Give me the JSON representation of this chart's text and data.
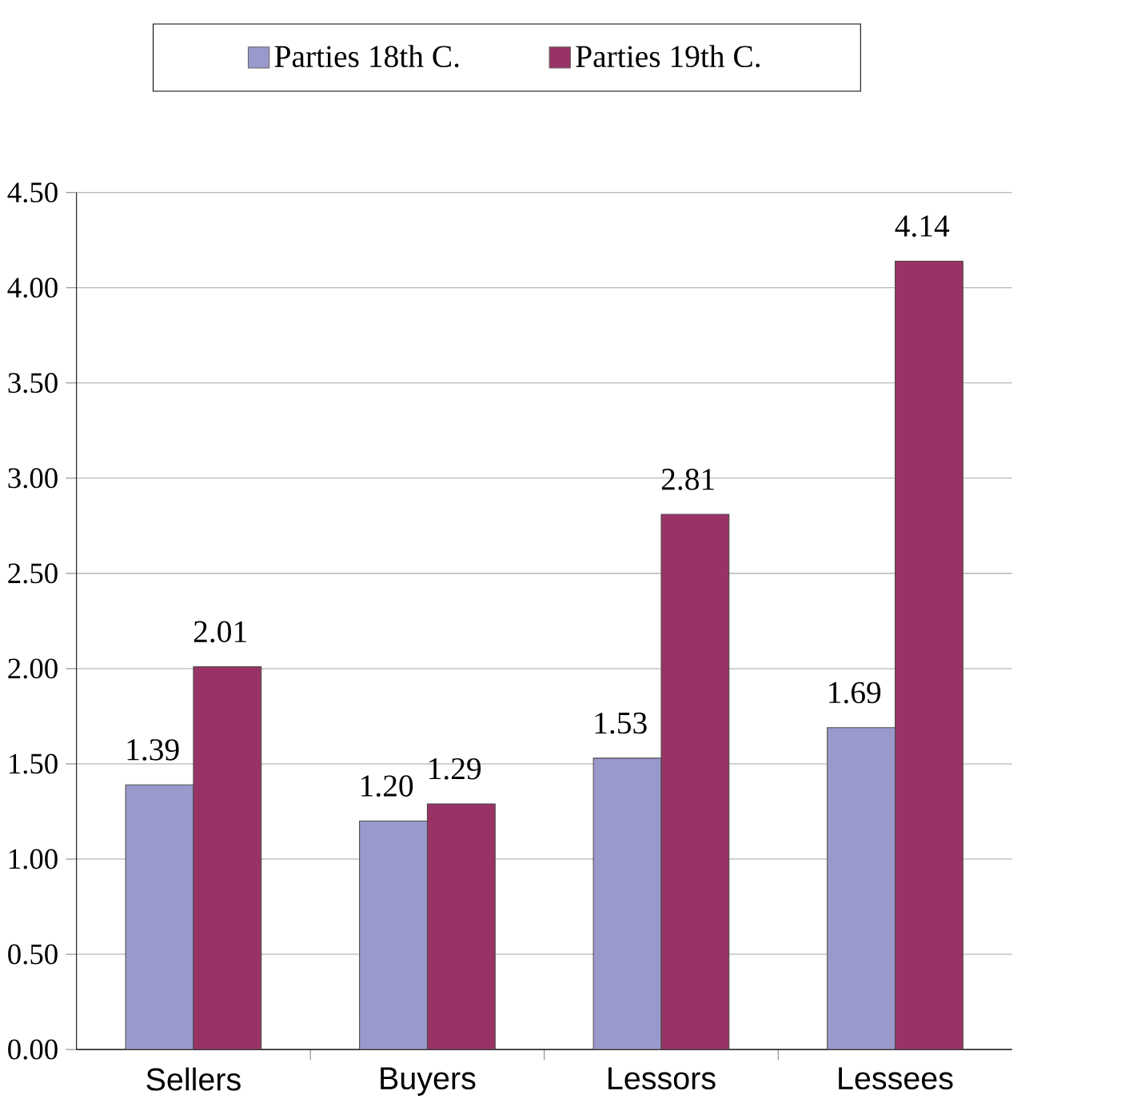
{
  "chart_data": {
    "type": "bar",
    "categories": [
      "Sellers",
      "Buyers",
      "Lessors",
      "Lessees"
    ],
    "series": [
      {
        "name": "Parties 18th C.",
        "color": "#9999cc",
        "values": [
          1.39,
          1.2,
          1.53,
          1.69
        ],
        "value_labels": [
          "1.39",
          "1.20",
          "1.53",
          "1.69"
        ]
      },
      {
        "name": "Parties 19th C.",
        "color": "#993366",
        "values": [
          2.01,
          1.29,
          2.81,
          4.14
        ],
        "value_labels": [
          "2.01",
          "1.29",
          "2.81",
          "4.14"
        ]
      }
    ],
    "ylim": [
      0,
      4.5
    ],
    "yticks": [
      {
        "value": 0,
        "label": "0.00"
      },
      {
        "value": 0.5,
        "label": "0.50"
      },
      {
        "value": 1,
        "label": "1.00"
      },
      {
        "value": 1.5,
        "label": "1.50"
      },
      {
        "value": 2,
        "label": "2.00"
      },
      {
        "value": 2.5,
        "label": "2.50"
      },
      {
        "value": 3,
        "label": "3.00"
      },
      {
        "value": 3.5,
        "label": "3.50"
      },
      {
        "value": 4,
        "label": "4.00"
      },
      {
        "value": 4.5,
        "label": "4.50"
      }
    ],
    "grid": "y",
    "legend": "top"
  }
}
